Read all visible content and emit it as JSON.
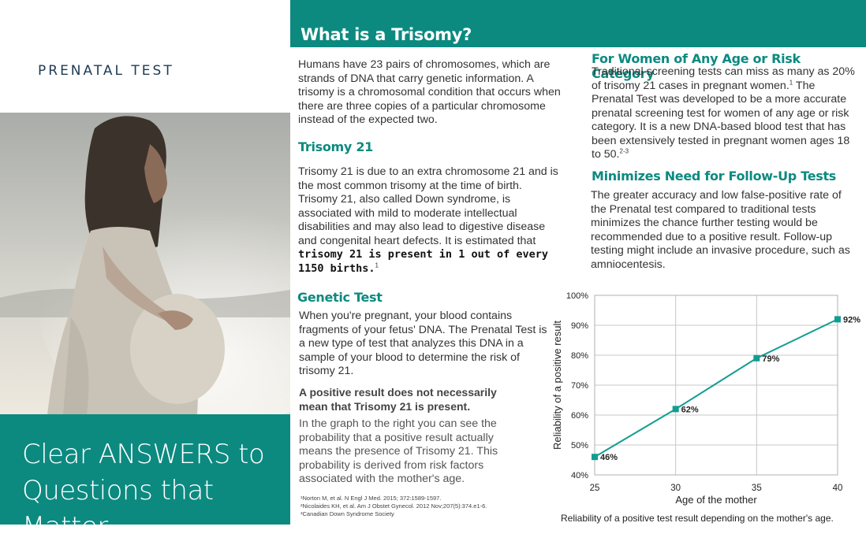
{
  "brand": "PRENATAL TEST",
  "cover": {
    "line1": "Clear ANSWERS to",
    "line2": "Questions that Matter"
  },
  "header": {
    "title": "What is a Trisomy?"
  },
  "intro": "Humans have 23 pairs of chromosomes, which are strands of DNA that carry genetic information. A trisomy is a chromosomal condition that occurs when there are three copies of a particular chromosome instead of the expected two.",
  "trisomy21": {
    "heading": "Trisomy 21",
    "text": "Trisomy 21 is due to an extra chromosome 21 and is the most common trisomy at the time of birth. Trisomy 21, also called Down syndrome, is associated with mild to moderate intellectual disabilities and may also lead to digestive disease and congenital heart defects. It is estimated that",
    "bold": "trisomy 21 is present in 1 out of every 1150 births.",
    "ref": "1"
  },
  "genetic": {
    "heading": "Genetic Test",
    "text": "When you're pregnant, your blood contains fragments of your fetus' DNA. The Prenatal Test is a new type of test that analyzes this DNA in a sample of your blood to determine the risk of trisomy 21.",
    "bold": "A positive result does not necessarily mean that Trisomy 21 is present.",
    "text2": "In the graph to the right you can see the probability that a positive result actually means the presence of Trisomy 21. This probability is derived from risk factors associated with the mother's age."
  },
  "women": {
    "heading": "For Women of Any Age or Risk Category",
    "text_a": "Traditional screening tests can miss as many as 20% of trisomy 21 cases in pregnant women.",
    "ref_a": "1",
    "text_b": " The Prenatal Test was developed to be a more accurate prenatal screening test for women of any age or risk category. It is a new DNA-based blood test that has been extensively tested in pregnant women ages 18 to 50.",
    "ref_b": "2-3"
  },
  "followup": {
    "heading": "Minimizes Need for Follow-Up Tests",
    "text": "The greater accuracy and low false-positive rate of the Prenatal test compared to traditional tests minimizes the chance further testing would be recommended due to a positive result. Follow-up testing might include an invasive procedure, such as amniocentesis."
  },
  "footnotes": [
    "¹Norton M, et al. N Engl J Med. 2015; 372:1589-1597.",
    "²Nicolaides KH, et al. Am J Obstet Gynecol. 2012 Nov;207(5):374.e1-6.",
    "³Canadian Down Syndrome Society"
  ],
  "caption": "Reliability of a positive test result  depending on the mother's age.",
  "colors": {
    "teal": "#0c8a80",
    "line": "#129d92"
  },
  "chart_data": {
    "type": "line",
    "x": [
      25,
      30,
      35,
      40
    ],
    "series": [
      {
        "values": [
          46,
          62,
          79,
          92
        ]
      }
    ],
    "data_labels": [
      "46%",
      "62%",
      "79%",
      "92%"
    ],
    "xlabel": "Age of the mother",
    "ylabel": "Reliability of a positive result",
    "xlim": [
      25,
      40
    ],
    "ylim": [
      40,
      100
    ],
    "xticks": [
      "25",
      "30",
      "35",
      "40"
    ],
    "yticks": [
      "40%",
      "50%",
      "60%",
      "70%",
      "80%",
      "90%",
      "100%"
    ],
    "grid": true,
    "legend": "none"
  }
}
